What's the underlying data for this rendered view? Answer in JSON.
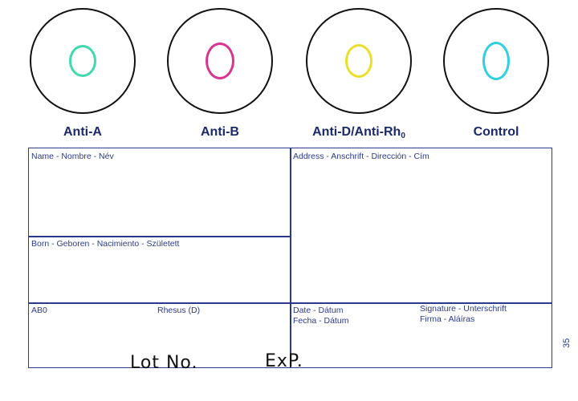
{
  "wells": [
    {
      "label": "Anti-A",
      "ring_color": "#3fd9b0"
    },
    {
      "label": "Anti-B",
      "ring_color": "#d9358f"
    },
    {
      "label_main": "Anti-D/Anti-Rh",
      "label_sub": "0",
      "ring_color": "#e9e02a"
    },
    {
      "label": "Control",
      "ring_color": "#2fd0e0"
    }
  ],
  "form": {
    "name": "Name - Nombre - Név",
    "address": "Address - Anschrift - Dirección - Cím",
    "born": "Born - Geboren - Nacimiento - Született",
    "abo": "AB0",
    "rhesus": "Rhesus (D)",
    "date_1": "Date - Dátum",
    "date_2": "Fecha - Dátum",
    "signature_1": "Signature - Unterschrift",
    "signature_2": "Firma - Aláíras"
  },
  "side_number": "35",
  "handwriting": {
    "lot": "Lot No.",
    "exp": "ExP."
  },
  "colors": {
    "form_ink": "#2b3a8c",
    "label_ink": "#1a2a6a"
  }
}
